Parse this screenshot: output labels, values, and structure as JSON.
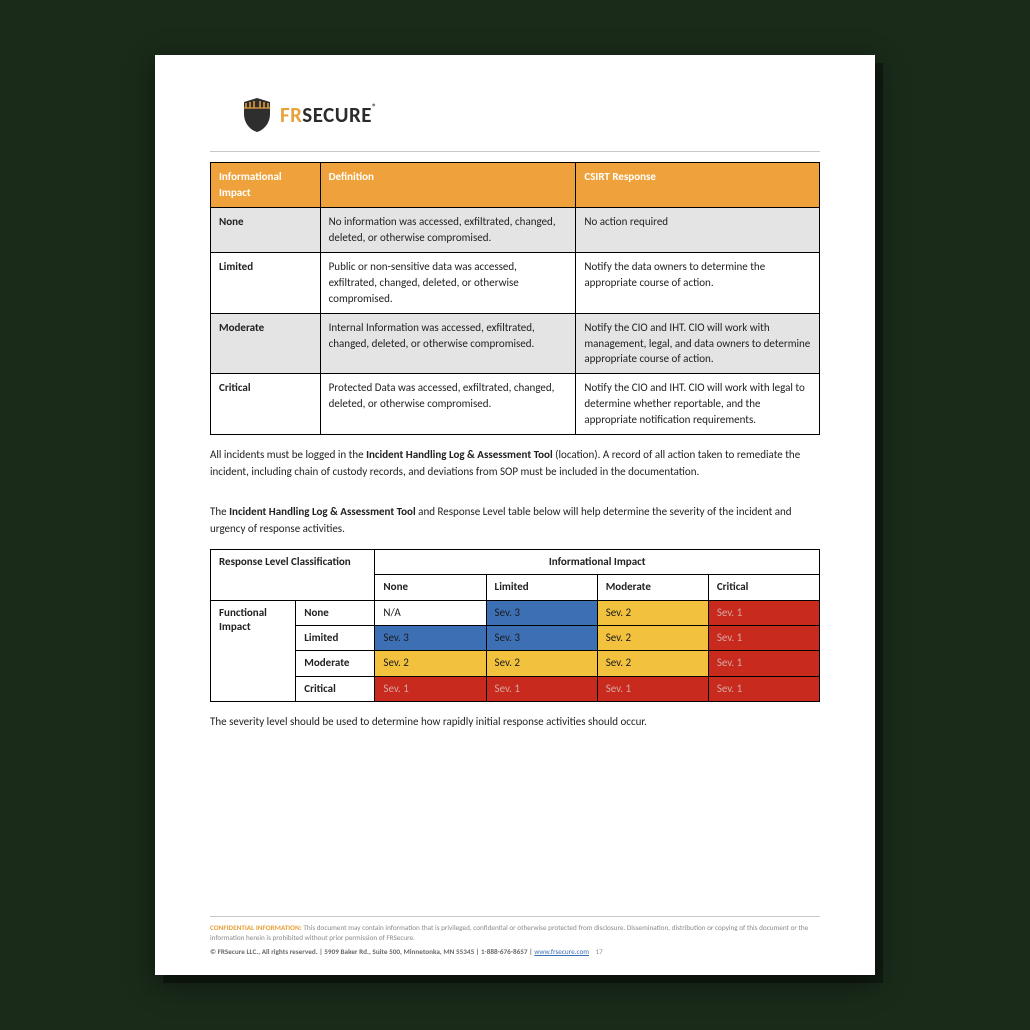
{
  "brand": {
    "part1": "FR",
    "part2": "SECURE",
    "reg": "®"
  },
  "colors": {
    "header_bg": "#efa23b",
    "header_fg": "#ffffff",
    "row_shade": "#e4e4e4",
    "sev_blue": "#3d6fb5",
    "sev_yellow": "#f2c23e",
    "sev_red": "#c92a1e",
    "sev_text_dark": "#1c1c1c",
    "sev_text_light": "#d4a7a3"
  },
  "table1": {
    "headers": {
      "a": "Informational Impact",
      "b": "Definition",
      "c": "CSIRT Response"
    },
    "rows": [
      {
        "shade": true,
        "a": "None",
        "b": "No information was accessed, exfiltrated, changed, deleted, or otherwise compromised.",
        "c": "No action required"
      },
      {
        "shade": false,
        "a": "Limited",
        "b": "Public or non-sensitive data was accessed, exfiltrated, changed, deleted, or otherwise compromised.",
        "c": "Notify the data owners to determine the appropriate course of action."
      },
      {
        "shade": true,
        "a": "Moderate",
        "b": "Internal Information was accessed, exfiltrated, changed, deleted, or otherwise compromised.",
        "c": "Notify the CIO and IHT. CIO will work with management, legal, and data owners to determine appropriate course of action."
      },
      {
        "shade": false,
        "a": "Critical",
        "b": "Protected Data was accessed, exfiltrated, changed, deleted, or otherwise compromised.",
        "c": "Notify the CIO and IHT. CIO will work with legal to determine whether reportable, and the appropriate notification requirements."
      }
    ]
  },
  "para1_pre": "All incidents must be logged in the ",
  "para1_bold": "Incident Handling Log & Assessment Tool",
  "para1_post": " (location).  A record of all action taken to remediate the incident, including chain of custody records, and deviations from SOP must be included in the documentation.",
  "para2_pre": "The ",
  "para2_bold": "Incident Handling Log & Assessment Tool",
  "para2_post": " and Response Level table below will help determine the severity of the incident and urgency of response activities.",
  "table2": {
    "corner": "Response Level Classification",
    "col_group": "Informational Impact",
    "cols": [
      "None",
      "Limited",
      "Moderate",
      "Critical"
    ],
    "row_group": "Functional Impact",
    "rows": [
      "None",
      "Limited",
      "Moderate",
      "Critical"
    ],
    "cells": [
      [
        {
          "t": "N/A",
          "bg": "#ffffff",
          "fg": "#1c1c1c"
        },
        {
          "t": "Sev. 3",
          "bg": "#3d6fb5",
          "fg": "#1c1c1c"
        },
        {
          "t": "Sev. 2",
          "bg": "#f2c23e",
          "fg": "#1c1c1c"
        },
        {
          "t": "Sev. 1",
          "bg": "#c92a1e",
          "fg": "#d4a7a3"
        }
      ],
      [
        {
          "t": "Sev. 3",
          "bg": "#3d6fb5",
          "fg": "#1c1c1c"
        },
        {
          "t": "Sev. 3",
          "bg": "#3d6fb5",
          "fg": "#1c1c1c"
        },
        {
          "t": "Sev. 2",
          "bg": "#f2c23e",
          "fg": "#1c1c1c"
        },
        {
          "t": "Sev. 1",
          "bg": "#c92a1e",
          "fg": "#d4a7a3"
        }
      ],
      [
        {
          "t": "Sev. 2",
          "bg": "#f2c23e",
          "fg": "#1c1c1c"
        },
        {
          "t": "Sev. 2",
          "bg": "#f2c23e",
          "fg": "#1c1c1c"
        },
        {
          "t": "Sev. 2",
          "bg": "#f2c23e",
          "fg": "#1c1c1c"
        },
        {
          "t": "Sev. 1",
          "bg": "#c92a1e",
          "fg": "#d4a7a3"
        }
      ],
      [
        {
          "t": "Sev. 1",
          "bg": "#c92a1e",
          "fg": "#d4a7a3"
        },
        {
          "t": "Sev. 1",
          "bg": "#c92a1e",
          "fg": "#d4a7a3"
        },
        {
          "t": "Sev. 1",
          "bg": "#c92a1e",
          "fg": "#d4a7a3"
        },
        {
          "t": "Sev. 1",
          "bg": "#c92a1e",
          "fg": "#d4a7a3"
        }
      ]
    ]
  },
  "para3": "The severity level should be used to determine how rapidly initial response activities should occur.",
  "footer": {
    "conf_label": "CONFIDENTIAL INFORMATION:",
    "conf_text": " This document may contain information that is privileged, confidential or otherwise protected from disclosure. Dissemination, distribution or copying of this document or the information herein is prohibited without prior permission of FRSecure.",
    "copyright": "© FRSecure LLC., All rights reserved. | 5909 Baker Rd., Suite 500, Minnetonka, MN 55345 | 1-888-676-8657 | ",
    "link": "www.frsecure.com",
    "page": "17"
  }
}
